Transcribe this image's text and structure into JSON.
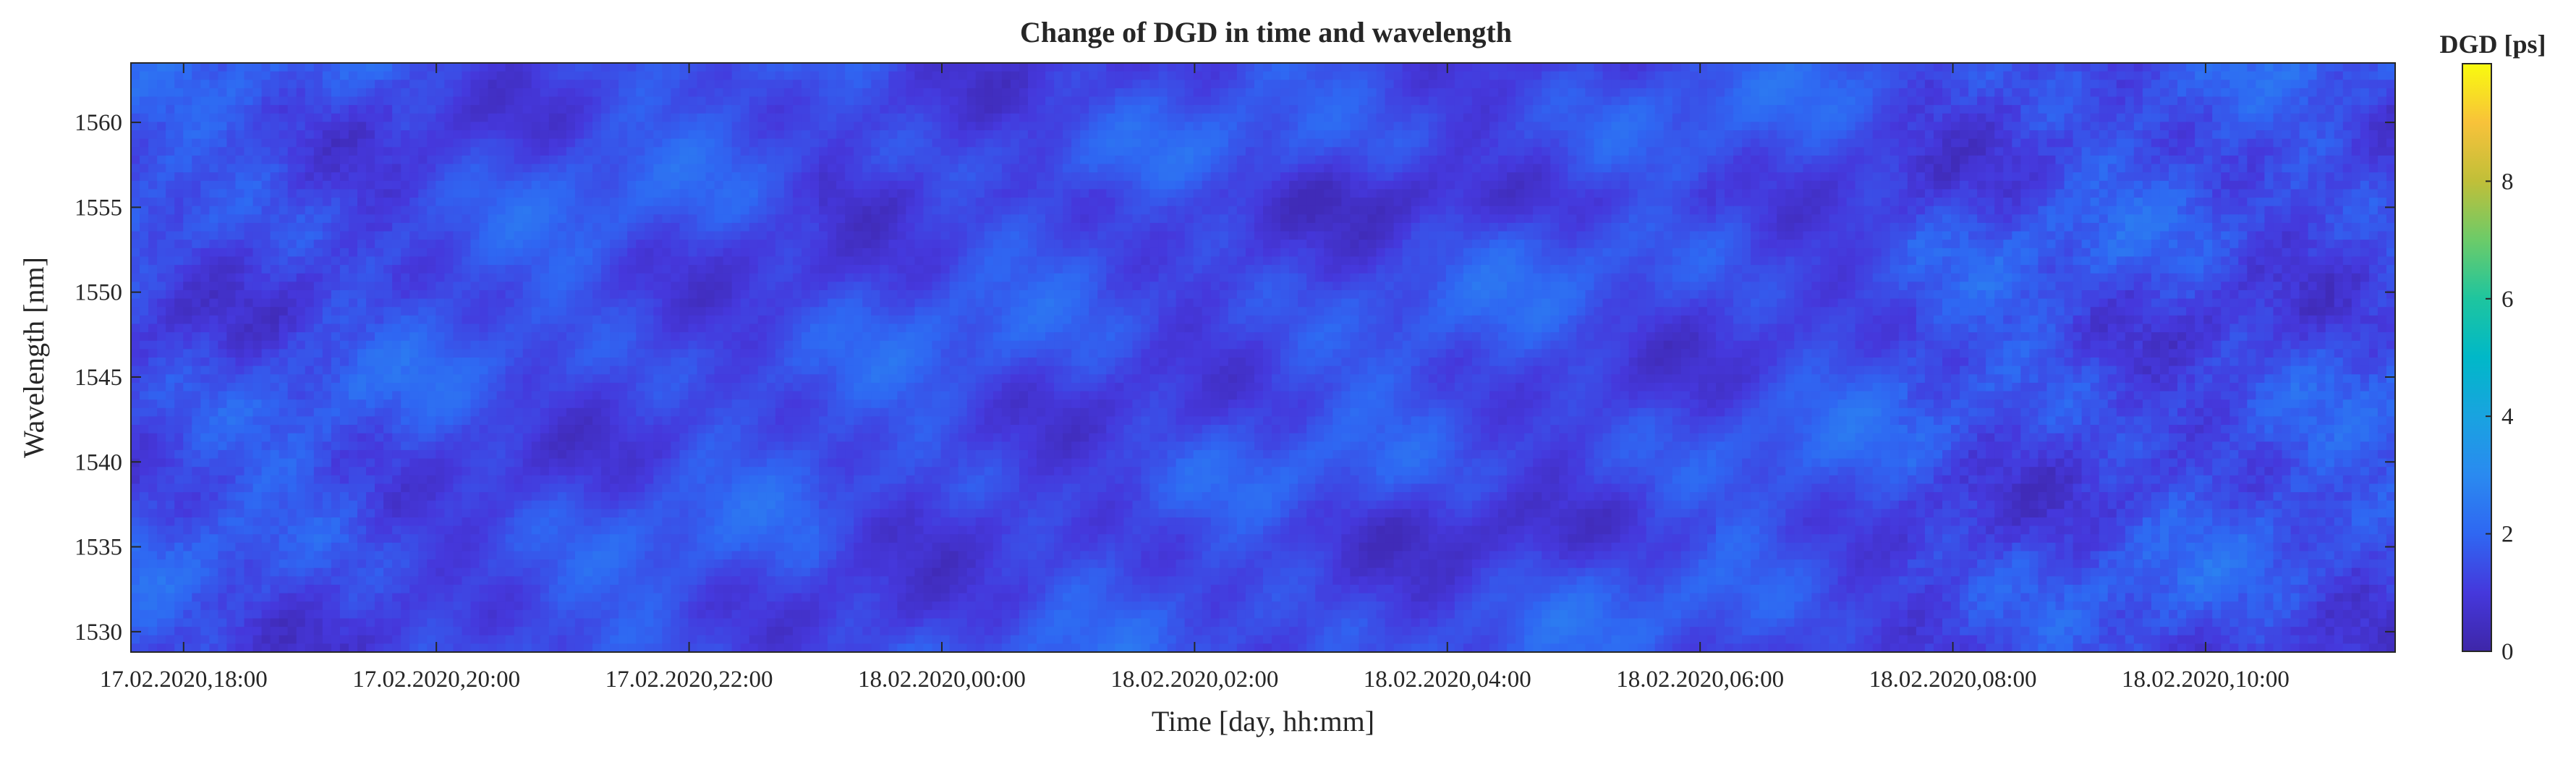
{
  "chart_data": {
    "type": "heatmap",
    "title": "Change of DGD in time and wavelength",
    "xlabel": "Time [day, hh:mm]",
    "ylabel": "Wavelength [nm]",
    "x_ticks": [
      "17.02.2020,18:00",
      "17.02.2020,20:00",
      "17.02.2020,22:00",
      "18.02.2020,00:00",
      "18.02.2020,02:00",
      "18.02.2020,04:00",
      "18.02.2020,06:00",
      "18.02.2020,08:00",
      "18.02.2020,10:00"
    ],
    "xlim": [
      "17.02.2020,17:35",
      "18.02.2020,11:30"
    ],
    "y_ticks": [
      1530,
      1535,
      1540,
      1545,
      1550,
      1555,
      1560
    ],
    "ylim": [
      1528.8,
      1563.5
    ],
    "colorbar": {
      "title": "DGD [ps]",
      "ticks": [
        0,
        2,
        4,
        6,
        8
      ],
      "range": [
        0,
        10
      ],
      "colormap": "parula"
    },
    "value_summary": {
      "min_approx": 0.3,
      "max_approx": 3.5,
      "typical": 1.4
    }
  }
}
